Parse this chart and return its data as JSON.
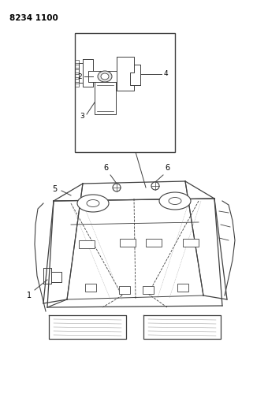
{
  "title_code": "8234 1100",
  "bg": "#ffffff",
  "lc": "#404040",
  "fig_w": 3.4,
  "fig_h": 5.33,
  "dpi": 100
}
